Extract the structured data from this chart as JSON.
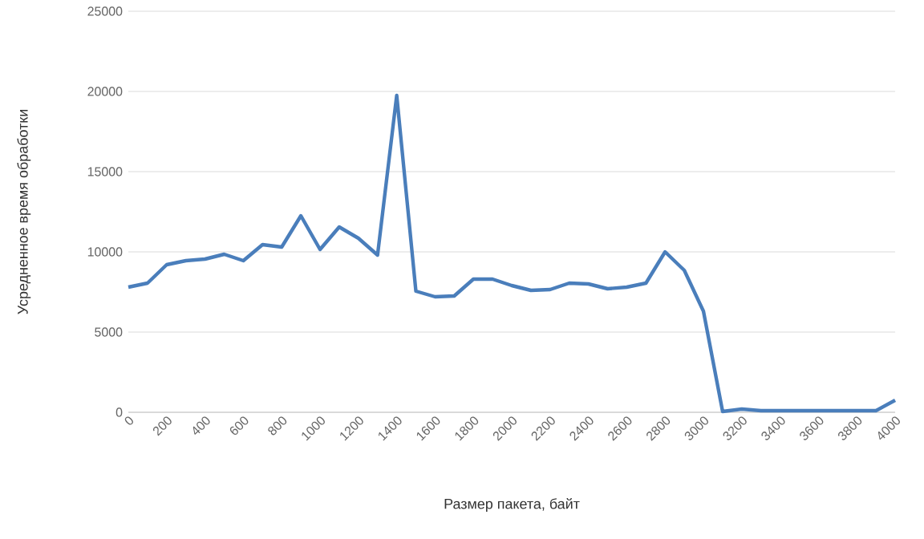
{
  "chart_data": {
    "type": "line",
    "xlabel": "Размер пакета, байт",
    "ylabel": "Усредненное время обработки",
    "x": [
      0,
      100,
      200,
      300,
      400,
      500,
      600,
      700,
      800,
      900,
      1000,
      1100,
      1200,
      1300,
      1400,
      1500,
      1600,
      1700,
      1800,
      1900,
      2000,
      2100,
      2200,
      2300,
      2400,
      2500,
      2600,
      2700,
      2800,
      2900,
      3000,
      3100,
      3200,
      3300,
      3400,
      3500,
      3600,
      3700,
      3800,
      3900,
      4000
    ],
    "series": [
      {
        "color": "#4a7ebb",
        "values": [
          7800,
          8050,
          9200,
          9450,
          9550,
          9850,
          9450,
          10450,
          10300,
          12250,
          10150,
          11550,
          10850,
          9800,
          19750,
          7550,
          7200,
          7250,
          8300,
          8300,
          7900,
          7600,
          7650,
          8050,
          8000,
          7700,
          7800,
          8050,
          10000,
          8850,
          6300,
          50,
          200,
          100,
          100,
          100,
          100,
          100,
          100,
          100,
          750
        ]
      }
    ],
    "xlim": [
      0,
      4000
    ],
    "ylim": [
      0,
      25000
    ],
    "xticks": [
      0,
      200,
      400,
      600,
      800,
      1000,
      1200,
      1400,
      1600,
      1800,
      2000,
      2200,
      2400,
      2600,
      2800,
      3000,
      3200,
      3400,
      3600,
      3800,
      4000
    ],
    "yticks": [
      0,
      5000,
      10000,
      15000,
      20000,
      25000
    ],
    "grid": "y",
    "marker": "none",
    "line_style": "solid"
  }
}
